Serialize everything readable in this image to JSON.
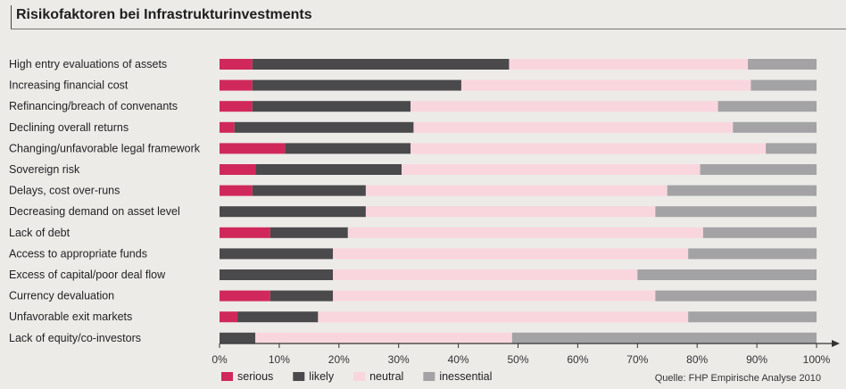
{
  "header": {
    "title": "Risikofaktoren bei Infrastrukturinvestments"
  },
  "source": "Quelle: FHP Empirische Analyse 2010",
  "colors": {
    "serious": "#d0285a",
    "likely": "#4a4a4c",
    "neutral": "#f9d6de",
    "inessential": "#a3a3a5"
  },
  "chart_data": {
    "type": "bar",
    "orientation": "horizontal",
    "stacked": true,
    "categories": [
      "High entry evaluations of assets",
      "Increasing financial cost",
      "Refinancing/breach of convenants",
      "Declining overall returns",
      "Changing/unfavorable legal framework",
      "Sovereign risk",
      "Delays, cost over-runs",
      "Decreasing demand on asset level",
      "Lack of debt",
      "Access to appropriate funds",
      "Excess of capital/poor deal flow",
      "Currency devaluation",
      "Unfavorable exit markets",
      "Lack of equity/co-investors"
    ],
    "series": [
      {
        "name": "serious",
        "values": [
          5.5,
          5.5,
          5.5,
          2.5,
          11,
          6,
          5.5,
          0,
          8.5,
          0,
          0,
          8.5,
          3,
          0
        ]
      },
      {
        "name": "likely",
        "values": [
          43,
          35,
          26.5,
          30,
          21,
          24.5,
          19,
          24.5,
          13,
          19,
          19,
          10.5,
          13.5,
          6
        ]
      },
      {
        "name": "neutral",
        "values": [
          40,
          48.5,
          51.5,
          53.5,
          59.5,
          50,
          50.5,
          48.5,
          59.5,
          59.5,
          51,
          54,
          62,
          43
        ]
      },
      {
        "name": "inessential",
        "values": [
          11.5,
          11,
          16.5,
          14,
          8.5,
          19.5,
          25,
          27,
          19,
          21.5,
          30,
          27,
          21.5,
          51
        ]
      }
    ],
    "xlim": [
      0,
      100
    ],
    "xticks": [
      "0%",
      "10%",
      "20%",
      "30%",
      "40%",
      "50%",
      "60%",
      "70%",
      "80%",
      "90%",
      "100%"
    ],
    "legend": [
      "serious",
      "likely",
      "neutral",
      "inessential"
    ],
    "legend_position": "bottom-left",
    "grid": false
  }
}
